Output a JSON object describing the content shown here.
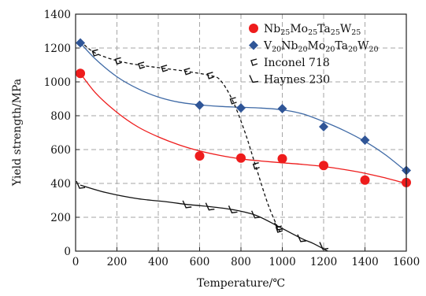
{
  "chart_data": {
    "type": "scatter",
    "xlabel": "Temperature/℃",
    "ylabel": "Yield strength/MPa",
    "xlim": [
      0,
      1600
    ],
    "ylim": [
      0,
      1400
    ],
    "x_ticks": [
      "0",
      "200",
      "400",
      "600",
      "800",
      "1000",
      "1200",
      "1400",
      "1600"
    ],
    "y_ticks": [
      "0",
      "200",
      "400",
      "600",
      "800",
      "1000",
      "1200",
      "1400"
    ],
    "grid": true,
    "legend_position": "top-right",
    "series": [
      {
        "name": "Nb25Mo25Ta25W25",
        "legend_parts": [
          [
            "Nb",
            "25"
          ],
          [
            "Mo",
            "25"
          ],
          [
            "Ta",
            "25"
          ],
          [
            "W",
            "25"
          ]
        ],
        "marker": "circle",
        "color": "#ee1c1c",
        "points": [
          [
            23,
            1050
          ],
          [
            600,
            562
          ],
          [
            800,
            550
          ],
          [
            1000,
            546
          ],
          [
            1200,
            506
          ],
          [
            1400,
            420
          ],
          [
            1600,
            405
          ]
        ],
        "fit_curve": [
          [
            23,
            1050
          ],
          [
            100,
            930
          ],
          [
            200,
            820
          ],
          [
            300,
            735
          ],
          [
            400,
            675
          ],
          [
            500,
            628
          ],
          [
            600,
            592
          ],
          [
            700,
            565
          ],
          [
            800,
            545
          ],
          [
            900,
            532
          ],
          [
            1000,
            522
          ],
          [
            1100,
            512
          ],
          [
            1200,
            500
          ],
          [
            1300,
            482
          ],
          [
            1400,
            460
          ],
          [
            1500,
            432
          ],
          [
            1600,
            400
          ]
        ]
      },
      {
        "name": "V20Nb20Mo20Ta20W20",
        "legend_parts": [
          [
            "V",
            "20"
          ],
          [
            "Nb",
            "20"
          ],
          [
            "Mo",
            "20"
          ],
          [
            "Ta",
            "20"
          ],
          [
            "W",
            "20"
          ]
        ],
        "marker": "diamond",
        "color": "#2f5597",
        "points": [
          [
            23,
            1230
          ],
          [
            600,
            862
          ],
          [
            800,
            846
          ],
          [
            1000,
            842
          ],
          [
            1200,
            735
          ],
          [
            1400,
            656
          ],
          [
            1600,
            477
          ]
        ],
        "fit_curve": [
          [
            23,
            1230
          ],
          [
            100,
            1130
          ],
          [
            200,
            1030
          ],
          [
            300,
            960
          ],
          [
            400,
            910
          ],
          [
            500,
            880
          ],
          [
            600,
            864
          ],
          [
            700,
            855
          ],
          [
            800,
            850
          ],
          [
            900,
            845
          ],
          [
            1000,
            835
          ],
          [
            1100,
            810
          ],
          [
            1200,
            765
          ],
          [
            1300,
            712
          ],
          [
            1400,
            648
          ],
          [
            1500,
            568
          ],
          [
            1600,
            470
          ]
        ]
      },
      {
        "name": "Inconel 718",
        "marker": "open-c",
        "color": "#111111",
        "line_style": "dashed",
        "points": [
          [
            93,
            1172
          ],
          [
            204,
            1124
          ],
          [
            316,
            1098
          ],
          [
            427,
            1080
          ],
          [
            538,
            1062
          ],
          [
            649,
            1038
          ],
          [
            760,
            889
          ],
          [
            871,
            504
          ],
          [
            982,
            130
          ]
        ],
        "fit_curve": [
          [
            23,
            1240
          ],
          [
            93,
            1172
          ],
          [
            204,
            1124
          ],
          [
            316,
            1098
          ],
          [
            427,
            1080
          ],
          [
            538,
            1062
          ],
          [
            649,
            1038
          ],
          [
            700,
            1010
          ],
          [
            760,
            889
          ],
          [
            820,
            700
          ],
          [
            871,
            504
          ],
          [
            930,
            280
          ],
          [
            982,
            130
          ],
          [
            1000,
            100
          ]
        ]
      },
      {
        "name": "Haynes 230",
        "marker": "open-check",
        "color": "#111111",
        "line_style": "solid",
        "points": [
          [
            23,
            390
          ],
          [
            538,
            275
          ],
          [
            649,
            262
          ],
          [
            760,
            245
          ],
          [
            871,
            215
          ],
          [
            982,
            145
          ],
          [
            1093,
            75
          ],
          [
            1200,
            30
          ]
        ],
        "fit_curve": [
          [
            23,
            390
          ],
          [
            150,
            345
          ],
          [
            300,
            310
          ],
          [
            450,
            290
          ],
          [
            538,
            276
          ],
          [
            649,
            263
          ],
          [
            760,
            245
          ],
          [
            871,
            212
          ],
          [
            982,
            145
          ],
          [
            1093,
            75
          ],
          [
            1150,
            45
          ],
          [
            1220,
            0
          ]
        ]
      }
    ]
  }
}
